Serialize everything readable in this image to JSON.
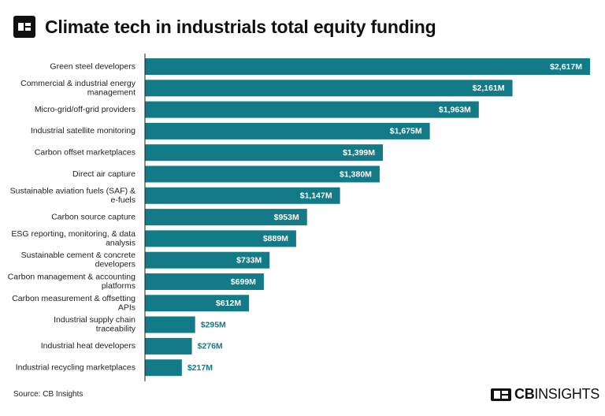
{
  "header": {
    "title": "Climate tech in industrials total equity funding"
  },
  "footer": {
    "source": "Source: CB Insights",
    "brand_bold": "CB",
    "brand_rest": "INSIGHTS"
  },
  "colors": {
    "bar": "#137a87",
    "label_inside": "#ffffff",
    "label_outside": "#137a87"
  },
  "chart_data": {
    "type": "bar",
    "orientation": "horizontal",
    "title": "Climate tech in industrials total equity funding",
    "xlabel": "",
    "ylabel": "",
    "unit": "$M",
    "grid": false,
    "xlim": [
      0,
      2617
    ],
    "categories": [
      [
        "Green steel developers"
      ],
      [
        "Commercial & industrial energy",
        "management"
      ],
      [
        "Micro-grid/off-grid providers"
      ],
      [
        "Industrial satellite monitoring"
      ],
      [
        "Carbon offset marketplaces"
      ],
      [
        "Direct air capture"
      ],
      [
        "Sustainable aviation fuels (SAF) &",
        "e-fuels"
      ],
      [
        "Carbon source capture"
      ],
      [
        "ESG reporting, monitoring, & data",
        "analysis"
      ],
      [
        "Sustainable cement & concrete",
        "developers"
      ],
      [
        "Carbon management & accounting",
        "platforms"
      ],
      [
        "Carbon measurement & offsetting",
        "APIs"
      ],
      [
        "Industrial supply chain",
        "traceability"
      ],
      [
        "Industrial heat developers"
      ],
      [
        "Industrial recycling marketplaces"
      ]
    ],
    "values": [
      2617,
      2161,
      1963,
      1675,
      1399,
      1380,
      1147,
      953,
      889,
      733,
      699,
      612,
      295,
      276,
      217
    ],
    "value_labels": [
      "$2,617M",
      "$2,161M",
      "$1,963M",
      "$1,675M",
      "$1,399M",
      "$1,380M",
      "$1,147M",
      "$953M",
      "$889M",
      "$733M",
      "$699M",
      "$612M",
      "$295M",
      "$276M",
      "$217M"
    ]
  }
}
